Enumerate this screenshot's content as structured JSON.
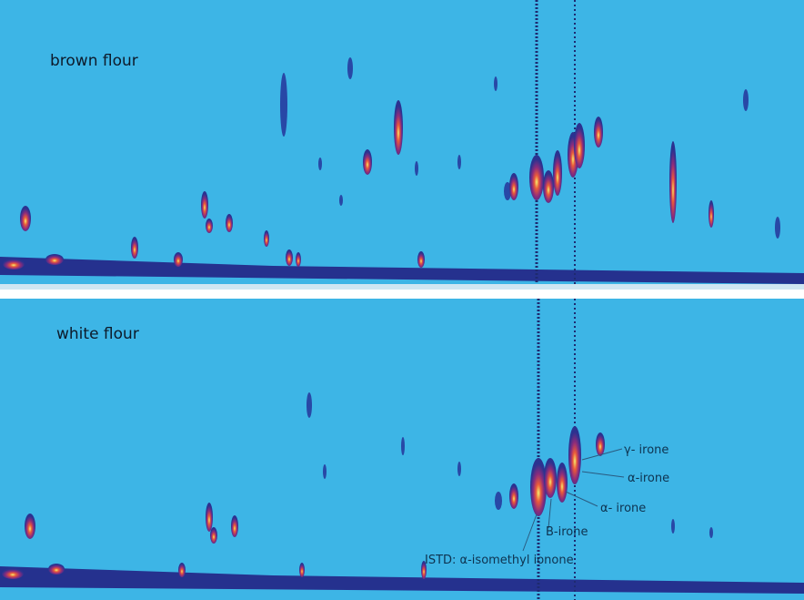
{
  "panels": [
    {
      "label": "brown flour"
    },
    {
      "label": "white flour"
    }
  ],
  "annotations": [
    "γ- irone",
    "α-irone",
    "α- irone",
    "B-irone",
    "ISTD: α-isomethyl ionone"
  ]
}
